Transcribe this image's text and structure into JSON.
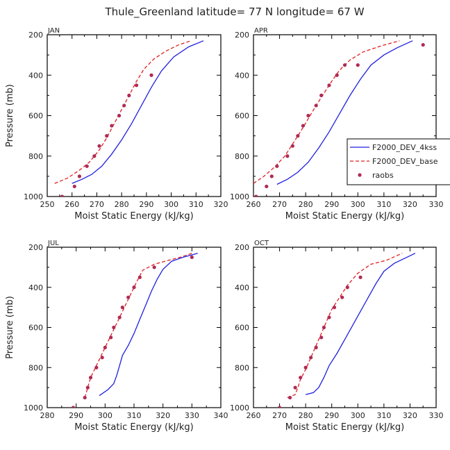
{
  "title": "Thule_Greenland  latitude= 77 N longitude= 67 W",
  "legend": {
    "entries": [
      {
        "label": "F2000_DEV_4kss",
        "color": "#1f1fe0",
        "style": "solid"
      },
      {
        "label": "F2000_DEV_base",
        "color": "#e01f1f",
        "style": "dashed"
      },
      {
        "label": "raobs",
        "color": "#b02a55",
        "style": "marker"
      }
    ]
  },
  "chart_data": [
    {
      "type": "line",
      "panel_label": "JAN",
      "xlabel": "Moist Static Energy (kJ/kg)",
      "ylabel": "Pressure (mb)",
      "xlim": [
        250,
        320
      ],
      "ylim": [
        1000,
        200
      ],
      "x_ticks": [
        250,
        260,
        270,
        280,
        290,
        300,
        310,
        320
      ],
      "y_ticks": [
        200,
        400,
        600,
        800,
        1000
      ],
      "series": [
        {
          "name": "F2000_DEV_4kss",
          "color": "#1f1fe0",
          "points": [
            [
              260,
              935
            ],
            [
              264,
              915
            ],
            [
              268,
              890
            ],
            [
              272,
              850
            ],
            [
              276,
              790
            ],
            [
              280,
              720
            ],
            [
              284,
              640
            ],
            [
              288,
              550
            ],
            [
              292,
              460
            ],
            [
              296,
              380
            ],
            [
              301,
              310
            ],
            [
              307,
              260
            ],
            [
              313,
              230
            ]
          ]
        },
        {
          "name": "F2000_DEV_base",
          "color": "#e01f1f",
          "points": [
            [
              253,
              935
            ],
            [
              258,
              910
            ],
            [
              263,
              870
            ],
            [
              267,
              830
            ],
            [
              271,
              770
            ],
            [
              274,
              710
            ],
            [
              277,
              640
            ],
            [
              280,
              570
            ],
            [
              283,
              500
            ],
            [
              286,
              430
            ],
            [
              289,
              370
            ],
            [
              293,
              320
            ],
            [
              298,
              280
            ],
            [
              303,
              250
            ],
            [
              308,
              230
            ]
          ]
        },
        {
          "name": "raobs",
          "color": "#b02a55",
          "points": [
            [
              256,
              1000
            ],
            [
              261,
              950
            ],
            [
              263,
              900
            ],
            [
              266,
              850
            ],
            [
              269,
              800
            ],
            [
              271,
              750
            ],
            [
              274,
              700
            ],
            [
              276,
              650
            ],
            [
              279,
              600
            ],
            [
              281,
              550
            ],
            [
              283,
              500
            ],
            [
              286,
              450
            ],
            [
              292,
              400
            ]
          ]
        }
      ]
    },
    {
      "type": "line",
      "panel_label": "APR",
      "xlabel": "Moist Static Energy (kJ/kg)",
      "ylabel": "",
      "xlim": [
        260,
        330
      ],
      "ylim": [
        1000,
        200
      ],
      "x_ticks": [
        260,
        270,
        280,
        290,
        300,
        310,
        320,
        330
      ],
      "y_ticks": [
        200,
        400,
        600,
        800,
        1000
      ],
      "series": [
        {
          "name": "F2000_DEV_4kss",
          "color": "#1f1fe0",
          "points": [
            [
              269,
              940
            ],
            [
              273,
              915
            ],
            [
              277,
              880
            ],
            [
              281,
              830
            ],
            [
              285,
              760
            ],
            [
              289,
              680
            ],
            [
              293,
              590
            ],
            [
              297,
              500
            ],
            [
              301,
              420
            ],
            [
              305,
              350
            ],
            [
              310,
              300
            ],
            [
              315,
              265
            ],
            [
              321,
              230
            ]
          ]
        },
        {
          "name": "F2000_DEV_base",
          "color": "#e01f1f",
          "points": [
            [
              260,
              935
            ],
            [
              264,
              900
            ],
            [
              268,
              855
            ],
            [
              272,
              800
            ],
            [
              275,
              740
            ],
            [
              278,
              680
            ],
            [
              281,
              615
            ],
            [
              284,
              550
            ],
            [
              287,
              490
            ],
            [
              290,
              430
            ],
            [
              293,
              375
            ],
            [
              297,
              325
            ],
            [
              302,
              285
            ],
            [
              309,
              255
            ],
            [
              316,
              230
            ]
          ]
        },
        {
          "name": "raobs",
          "color": "#b02a55",
          "points": [
            [
              261,
              1000
            ],
            [
              265,
              950
            ],
            [
              267,
              900
            ],
            [
              269,
              850
            ],
            [
              273,
              800
            ],
            [
              275,
              750
            ],
            [
              277,
              700
            ],
            [
              279,
              650
            ],
            [
              281,
              600
            ],
            [
              284,
              550
            ],
            [
              286,
              500
            ],
            [
              289,
              450
            ],
            [
              292,
              400
            ],
            [
              295,
              350
            ],
            [
              300,
              350
            ],
            [
              325,
              250
            ]
          ]
        }
      ]
    },
    {
      "type": "line",
      "panel_label": "JUL",
      "xlabel": "Moist Static Energy (kJ/kg)",
      "ylabel": "Pressure (mb)",
      "xlim": [
        280,
        340
      ],
      "ylim": [
        1000,
        200
      ],
      "x_ticks": [
        280,
        290,
        300,
        310,
        320,
        330,
        340
      ],
      "y_ticks": [
        200,
        400,
        600,
        800,
        1000
      ],
      "series": [
        {
          "name": "F2000_DEV_4kss",
          "color": "#1f1fe0",
          "points": [
            [
              298,
              940
            ],
            [
              301,
              910
            ],
            [
              303,
              880
            ],
            [
              304,
              840
            ],
            [
              305,
              790
            ],
            [
              306,
              740
            ],
            [
              308,
              690
            ],
            [
              310,
              630
            ],
            [
              312,
              560
            ],
            [
              314,
              490
            ],
            [
              316,
              420
            ],
            [
              318,
              360
            ],
            [
              320,
              310
            ],
            [
              323,
              270
            ],
            [
              327,
              250
            ],
            [
              332,
              230
            ]
          ]
        },
        {
          "name": "F2000_DEV_base",
          "color": "#e01f1f",
          "points": [
            [
              293,
              950
            ],
            [
              294,
              900
            ],
            [
              295,
              850
            ],
            [
              297,
              790
            ],
            [
              299,
              730
            ],
            [
              301,
              670
            ],
            [
              303,
              610
            ],
            [
              305,
              550
            ],
            [
              307,
              490
            ],
            [
              309,
              430
            ],
            [
              311,
              370
            ],
            [
              313,
              315
            ],
            [
              317,
              285
            ],
            [
              322,
              265
            ],
            [
              326,
              250
            ],
            [
              330,
              230
            ]
          ]
        },
        {
          "name": "raobs",
          "color": "#b02a55",
          "points": [
            [
              289,
              1000
            ],
            [
              293,
              950
            ],
            [
              294,
              900
            ],
            [
              295,
              850
            ],
            [
              297,
              800
            ],
            [
              299,
              750
            ],
            [
              300,
              700
            ],
            [
              302,
              650
            ],
            [
              303,
              600
            ],
            [
              305,
              550
            ],
            [
              306,
              500
            ],
            [
              308,
              450
            ],
            [
              310,
              400
            ],
            [
              312,
              350
            ],
            [
              317,
              300
            ],
            [
              330,
              250
            ]
          ]
        }
      ]
    },
    {
      "type": "line",
      "panel_label": "OCT",
      "xlabel": "Moist Static Energy (kJ/kg)",
      "ylabel": "",
      "xlim": [
        260,
        330
      ],
      "ylim": [
        1000,
        200
      ],
      "x_ticks": [
        260,
        270,
        280,
        290,
        300,
        310,
        320,
        330
      ],
      "y_ticks": [
        200,
        400,
        600,
        800,
        1000
      ],
      "series": [
        {
          "name": "F2000_DEV_4kss",
          "color": "#1f1fe0",
          "points": [
            [
              280,
              935
            ],
            [
              283,
              925
            ],
            [
              285,
              900
            ],
            [
              287,
              850
            ],
            [
              289,
              790
            ],
            [
              292,
              730
            ],
            [
              295,
              660
            ],
            [
              298,
              590
            ],
            [
              301,
              520
            ],
            [
              304,
              450
            ],
            [
              307,
              380
            ],
            [
              310,
              320
            ],
            [
              314,
              280
            ],
            [
              318,
              255
            ],
            [
              322,
              230
            ]
          ]
        },
        {
          "name": "F2000_DEV_base",
          "color": "#e01f1f",
          "points": [
            [
              273,
              950
            ],
            [
              276,
              935
            ],
            [
              277,
              900
            ],
            [
              278,
              860
            ],
            [
              280,
              810
            ],
            [
              282,
              750
            ],
            [
              284,
              690
            ],
            [
              286,
              630
            ],
            [
              288,
              570
            ],
            [
              290,
              510
            ],
            [
              293,
              450
            ],
            [
              296,
              390
            ],
            [
              300,
              330
            ],
            [
              305,
              285
            ],
            [
              311,
              265
            ],
            [
              317,
              230
            ]
          ]
        },
        {
          "name": "raobs",
          "color": "#b02a55",
          "points": [
            [
              270,
              1000
            ],
            [
              274,
              950
            ],
            [
              276,
              900
            ],
            [
              278,
              850
            ],
            [
              280,
              800
            ],
            [
              282,
              750
            ],
            [
              284,
              700
            ],
            [
              286,
              650
            ],
            [
              287,
              600
            ],
            [
              289,
              550
            ],
            [
              291,
              500
            ],
            [
              294,
              450
            ],
            [
              296,
              400
            ],
            [
              301,
              350
            ]
          ]
        }
      ]
    }
  ]
}
